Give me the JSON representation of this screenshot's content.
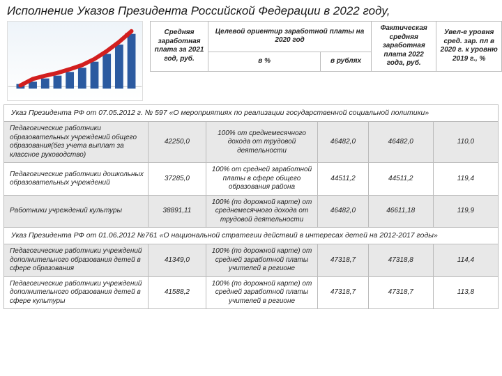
{
  "title": "Исполнение Указов Президента Российской Федерации в 2022 году,",
  "chart": {
    "type": "bar+line",
    "bars": [
      10,
      15,
      22,
      28,
      36,
      45,
      58,
      75,
      95,
      118
    ],
    "bar_color": "#2b5aa0",
    "arrow_color": "#d21f1f",
    "background_gradient": [
      "#eef4f9",
      "#ffffff"
    ],
    "grid_color": "#dddddd"
  },
  "headers": {
    "col1": "Средняя заработная плата за 2021 год, руб.",
    "col2": "Целевой ориентир заработной платы на 2020 год",
    "col2a": "в %",
    "col2b": "в рублях",
    "col3": "Фактическая средняя заработная плата 2022 года, руб.",
    "col4": "Увел-е уровня сред. зар. пл в 2020 г. к уровню 2019 г., %"
  },
  "section1": "Указ Президента РФ от 07.05.2012 г. № 597 «О мероприятиях по реализации государственной социальной политики»",
  "section2": "Указ Президента РФ от 01.06.2012 №761 «О национальной стратегии действий в интересах детей на 2012-2017 годы»",
  "rows": [
    {
      "label": "Педагогические работники образовательных учреждений общего образования(без учета выплат за классное руководство)",
      "avg2021": "42250,0",
      "target_pct": "100% от среднемесячного дохода от трудовой деятельности",
      "target_rub": "46482,0",
      "fact2022": "46482,0",
      "growth": "110,0"
    },
    {
      "label": "Педагогические работники дошкольных образовательных учреждений",
      "avg2021": "37285,0",
      "target_pct": "100% от средней заработной платы в сфере общего образования района",
      "target_rub": "44511,2",
      "fact2022": "44511,2",
      "growth": "119,4"
    },
    {
      "label": "Работники учреждений культуры",
      "avg2021": "38891,11",
      "target_pct": "100% (по дорожной карте) от среднемесячного дохода от трудовой деятельности",
      "target_rub": "46482,0",
      "fact2022": "46611,18",
      "growth": "119,9"
    }
  ],
  "rows2": [
    {
      "label": "Педагогические работники учреждений дополнительного образования детей в сфере образования",
      "avg2021": "41349,0",
      "target_pct": "100% (по дорожной карте) от средней заработной платы учителей в регионе",
      "target_rub": "47318,7",
      "fact2022": "47318,8",
      "growth": "114,4"
    },
    {
      "label": "Педагогические работники учреждений дополнительного образования детей в сфере культуры",
      "avg2021": "41588,2",
      "target_pct": "100% (по дорожной карте) от средней заработной платы учителей в регионе",
      "target_rub": "47318,7",
      "fact2022": "47318,7",
      "growth": "113,8"
    }
  ],
  "styling": {
    "font_family": "Arial",
    "base_fontsize_pt": 10,
    "title_fontsize_pt": 17,
    "border_color": "#bbbbbb",
    "gray_row_bg": "#e8e8e8",
    "text_color": "#222222"
  }
}
